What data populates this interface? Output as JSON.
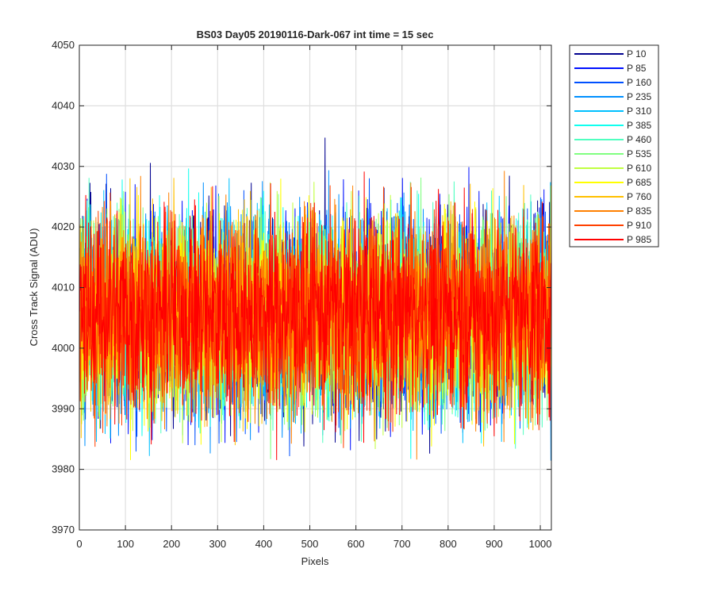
{
  "chart_data": {
    "type": "line",
    "title": "BS03 Day05 20190116-Dark-067 int time = 15 sec",
    "xlabel": "Pixels",
    "ylabel": "Cross Track Signal (ADU)",
    "xlim": [
      0,
      1024
    ],
    "ylim": [
      3970,
      4050
    ],
    "xticks": [
      0,
      100,
      200,
      300,
      400,
      500,
      600,
      700,
      800,
      900,
      1000
    ],
    "yticks": [
      3970,
      3980,
      3990,
      4000,
      4010,
      4020,
      4030,
      4040,
      4050
    ],
    "grid": true,
    "legend_position": "outside-top-right",
    "series": [
      {
        "name": "P 10",
        "color": "#00008f"
      },
      {
        "name": "P 85",
        "color": "#0010ff"
      },
      {
        "name": "P 160",
        "color": "#0050ff"
      },
      {
        "name": "P 235",
        "color": "#0090ff"
      },
      {
        "name": "P 310",
        "color": "#00c0ff"
      },
      {
        "name": "P 385",
        "color": "#10ffef"
      },
      {
        "name": "P 460",
        "color": "#50ffc0"
      },
      {
        "name": "P 535",
        "color": "#80ff80"
      },
      {
        "name": "P 610",
        "color": "#c0ff40"
      },
      {
        "name": "P 685",
        "color": "#ffff00"
      },
      {
        "name": "P 760",
        "color": "#ffc000"
      },
      {
        "name": "P 835",
        "color": "#ff8000"
      },
      {
        "name": "P 910",
        "color": "#ff4000"
      },
      {
        "name": "P 985",
        "color": "#ff0000"
      }
    ]
  }
}
